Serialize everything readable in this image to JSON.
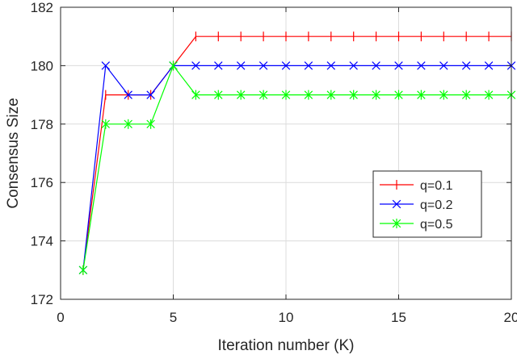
{
  "chart_data": {
    "type": "line",
    "xlabel": "Iteration number (K)",
    "ylabel": "Consensus Size",
    "xlim": [
      0,
      20
    ],
    "ylim": [
      172,
      182
    ],
    "xticks": [
      0,
      5,
      10,
      15,
      20
    ],
    "yticks": [
      172,
      174,
      176,
      178,
      180,
      182
    ],
    "grid": true,
    "legend_position": "lower-right",
    "x": [
      1,
      2,
      3,
      4,
      5,
      6,
      7,
      8,
      9,
      10,
      11,
      12,
      13,
      14,
      15,
      16,
      17,
      18,
      19,
      20
    ],
    "series": [
      {
        "name": "q=0.1",
        "color": "#ff0000",
        "marker": "vertical-line",
        "values": [
          173,
          179,
          179,
          179,
          180,
          181,
          181,
          181,
          181,
          181,
          181,
          181,
          181,
          181,
          181,
          181,
          181,
          181,
          181,
          181
        ]
      },
      {
        "name": "q=0.2",
        "color": "#0000ff",
        "marker": "x",
        "values": [
          173,
          180,
          179,
          179,
          180,
          180,
          180,
          180,
          180,
          180,
          180,
          180,
          180,
          180,
          180,
          180,
          180,
          180,
          180,
          180
        ]
      },
      {
        "name": "q=0.5",
        "color": "#00ff00",
        "marker": "asterisk",
        "values": [
          173,
          178,
          178,
          178,
          180,
          179,
          179,
          179,
          179,
          179,
          179,
          179,
          179,
          179,
          179,
          179,
          179,
          179,
          179,
          179
        ]
      }
    ]
  }
}
